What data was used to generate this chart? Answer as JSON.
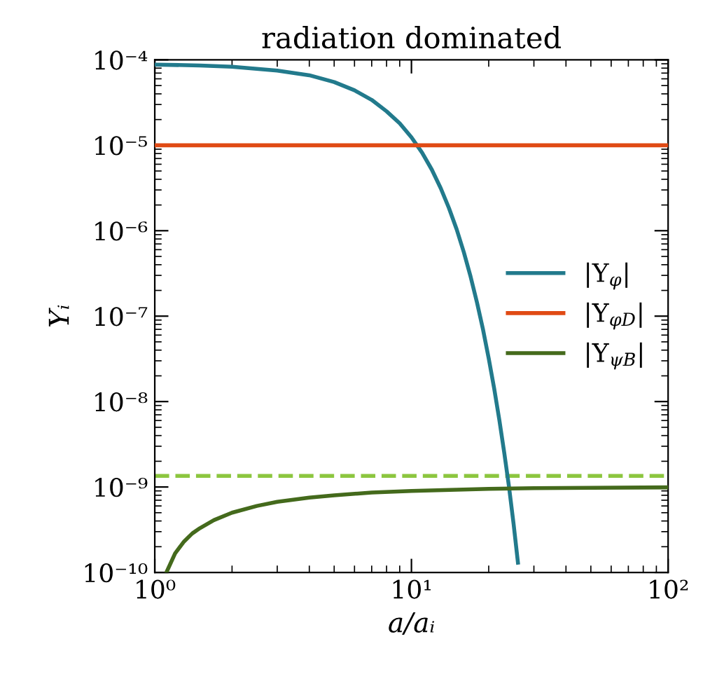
{
  "chart_data": {
    "type": "line",
    "title": "radiation dominated",
    "xlabel": "a/aᵢ",
    "ylabel": "Yᵢ",
    "log": "xy",
    "grid": false,
    "legend": "right",
    "line_style": "solid",
    "marker": "none",
    "xlim": [
      1,
      100
    ],
    "ylim": [
      1e-10,
      0.0001
    ],
    "xticks": [
      {
        "value": 1,
        "label": "10⁰"
      },
      {
        "value": 10,
        "label": "10¹"
      },
      {
        "value": 100,
        "label": "10²"
      }
    ],
    "yticks": [
      {
        "value": 1e-10,
        "label": "10⁻¹⁰"
      },
      {
        "value": 1e-09,
        "label": "10⁻⁹"
      },
      {
        "value": 1e-08,
        "label": "10⁻⁸"
      },
      {
        "value": 1e-07,
        "label": "10⁻⁷"
      },
      {
        "value": 1e-06,
        "label": "10⁻⁶"
      },
      {
        "value": 1e-05,
        "label": "10⁻⁵"
      },
      {
        "value": 0.0001,
        "label": "10⁻⁴"
      }
    ],
    "series": [
      {
        "name": "|Y$_{φ}$|",
        "color": "#227a8c",
        "x": [
          1,
          1.5,
          2,
          3,
          4,
          5,
          6,
          7,
          8,
          9,
          10,
          11,
          12,
          13,
          14,
          15,
          16,
          17,
          18,
          19,
          20,
          21,
          22,
          23,
          24,
          25,
          26
        ],
        "values": [
          8.8e-05,
          8.6e-05,
          8.3e-05,
          7.5e-05,
          6.6e-05,
          5.5e-05,
          4.4e-05,
          3.4e-05,
          2.5e-05,
          1.81e-05,
          1.24e-05,
          8.2e-06,
          5.2e-06,
          3.15e-06,
          1.84e-06,
          1.04e-06,
          5.6e-07,
          2.9e-07,
          1.45e-07,
          7e-08,
          3.2e-08,
          1.43e-08,
          6.1e-09,
          2.5e-09,
          1e-09,
          3.7e-10,
          1.3e-10
        ]
      },
      {
        "name": "|Y$_{φD}$|",
        "color": "#e04a14",
        "x": [
          1,
          100
        ],
        "values": [
          1e-05,
          1e-05
        ]
      },
      {
        "name": "|Y$_{ψB}$|",
        "color": "#446a1c",
        "x": [
          1.11,
          1.2,
          1.3,
          1.4,
          1.5,
          1.7,
          2,
          2.5,
          3,
          4,
          5,
          7,
          10,
          15,
          20,
          30,
          50,
          100
        ],
        "values": [
          1e-10,
          1.67e-10,
          2.3e-10,
          2.86e-10,
          3.3e-10,
          4.1e-10,
          5e-10,
          6e-10,
          6.7e-10,
          7.5e-10,
          8e-10,
          8.6e-10,
          9e-10,
          9.3e-10,
          9.5e-10,
          9.7e-10,
          9.8e-10,
          9.9e-10
        ]
      }
    ],
    "ref_lines": [
      {
        "axis": "y",
        "value": 1.35e-09,
        "label": null,
        "color": "#8cc63f",
        "line_style": "dashed"
      }
    ]
  }
}
